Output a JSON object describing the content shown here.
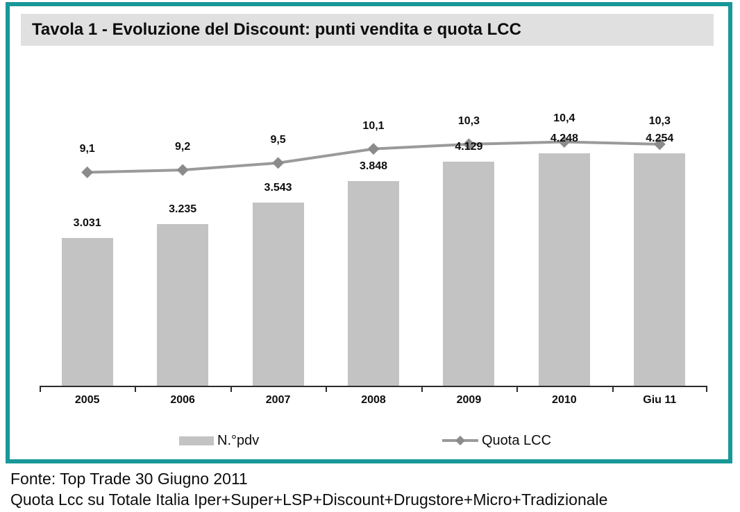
{
  "title": "Tavola 1 - Evoluzione del Discount: punti vendita e quota LCC",
  "legend": {
    "bar_label": "N.°pdv",
    "line_label": "Quota LCC"
  },
  "footer": {
    "line1": "Fonte: Top Trade 30 Giugno 2011",
    "line2": "Quota Lcc su Totale Italia Iper+Super+LSP+Discount+Drugstore+Micro+Tradizionale"
  },
  "colors": {
    "frame_border": "#189898",
    "title_background": "#e0e0e0",
    "bar_fill": "#c3c3c3",
    "line_stroke": "#9a9a9a",
    "marker_fill": "#8b8b8b",
    "axis": "#2b2b2b",
    "text": "#0d0d0d"
  },
  "chart_data": {
    "type": "bar",
    "subtype": "bar-with-line-overlay",
    "title": "Tavola 1 - Evoluzione del Discount: punti vendita e quota LCC",
    "categories": [
      "2005",
      "2006",
      "2007",
      "2008",
      "2009",
      "2010",
      "Giu 11"
    ],
    "series": [
      {
        "name": "N.°pdv",
        "type": "bar",
        "axis": "primary",
        "values": [
          3031,
          3235,
          3543,
          3848,
          4129,
          4248,
          4254
        ],
        "value_labels": [
          "3.031",
          "3.235",
          "3.543",
          "3.848",
          "4.129",
          "4.248",
          "4.254"
        ]
      },
      {
        "name": "Quota LCC",
        "type": "line",
        "axis": "secondary",
        "values": [
          9.1,
          9.2,
          9.5,
          10.1,
          10.3,
          10.4,
          10.3
        ],
        "value_labels": [
          "9,1",
          "9,2",
          "9,5",
          "10,1",
          "10,3",
          "10,4",
          "10,3"
        ]
      }
    ],
    "xlabel": "",
    "ylabel": "",
    "gridlines": false,
    "y_axes_hidden": true,
    "data_labels_shown": true,
    "legend_position": "bottom"
  }
}
